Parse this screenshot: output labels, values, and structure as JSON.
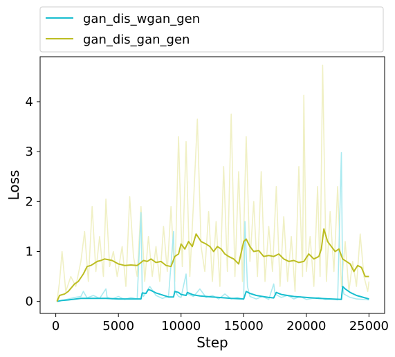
{
  "chart_data": {
    "type": "line",
    "xlabel": "Step",
    "ylabel": "Loss",
    "xlim": [
      -1250,
      26250
    ],
    "ylim": [
      -0.24,
      4.9
    ],
    "xticks": [
      0,
      5000,
      10000,
      15000,
      20000,
      25000
    ],
    "yticks": [
      0,
      1,
      2,
      3,
      4
    ],
    "grid": false,
    "legend_position": "top (above plot)",
    "series": [
      {
        "name": "gan_dis_wgan_gen",
        "color": "#17becf",
        "raw_color": "#aaeaf0",
        "raw_x": [
          100,
          500,
          1000,
          1500,
          2000,
          2200,
          2500,
          3000,
          3500,
          4000,
          4100,
          4500,
          5000,
          5500,
          6000,
          6500,
          6800,
          6900,
          7000,
          7500,
          8000,
          8500,
          9000,
          9400,
          9500,
          9800,
          10000,
          10400,
          10500,
          11000,
          11500,
          12000,
          12500,
          13000,
          13500,
          14000,
          14500,
          15000,
          15100,
          15300,
          15500,
          16000,
          16500,
          17000,
          17400,
          17500,
          18000,
          18500,
          19000,
          19500,
          20000,
          20500,
          21000,
          21500,
          22000,
          22500,
          22800,
          22900,
          23000,
          23500,
          24000,
          24500,
          25000
        ],
        "raw_y": [
          0.0,
          0.02,
          0.05,
          0.08,
          0.1,
          0.2,
          0.07,
          0.12,
          0.06,
          0.25,
          0.08,
          0.05,
          0.1,
          0.04,
          0.08,
          0.05,
          1.78,
          0.2,
          0.1,
          0.3,
          0.12,
          0.06,
          0.1,
          1.4,
          0.2,
          0.1,
          0.08,
          0.55,
          0.15,
          0.1,
          0.25,
          0.08,
          0.12,
          0.05,
          0.15,
          0.05,
          0.08,
          0.04,
          1.6,
          0.3,
          0.1,
          0.05,
          0.1,
          0.04,
          0.35,
          0.15,
          0.08,
          0.12,
          0.05,
          0.1,
          0.04,
          0.06,
          0.08,
          0.04,
          0.05,
          0.03,
          2.98,
          0.3,
          0.15,
          0.08,
          0.05,
          0.04,
          0.03
        ],
        "smooth_x": [
          100,
          500,
          1000,
          2000,
          3000,
          4000,
          5000,
          6000,
          6800,
          6900,
          7200,
          7400,
          7600,
          8000,
          8500,
          9000,
          9400,
          9500,
          9800,
          10000,
          10400,
          10500,
          10800,
          11000,
          11500,
          12000,
          12500,
          13000,
          14000,
          15000,
          15200,
          15500,
          16000,
          16500,
          17000,
          17400,
          17600,
          18000,
          19000,
          20000,
          21000,
          22000,
          22800,
          22900,
          23100,
          23500,
          24000,
          25000
        ],
        "smooth_y": [
          0.0,
          0.02,
          0.03,
          0.06,
          0.06,
          0.06,
          0.05,
          0.05,
          0.05,
          0.17,
          0.16,
          0.24,
          0.22,
          0.17,
          0.13,
          0.09,
          0.09,
          0.2,
          0.18,
          0.14,
          0.12,
          0.18,
          0.15,
          0.13,
          0.11,
          0.1,
          0.09,
          0.08,
          0.06,
          0.05,
          0.2,
          0.16,
          0.12,
          0.1,
          0.08,
          0.07,
          0.18,
          0.14,
          0.1,
          0.08,
          0.06,
          0.05,
          0.04,
          0.3,
          0.25,
          0.18,
          0.12,
          0.05
        ]
      },
      {
        "name": "gan_dis_gan_gen",
        "color": "#bcbd22",
        "raw_color": "#f0f0c4",
        "raw_x": [
          100,
          300,
          500,
          800,
          1200,
          1600,
          2000,
          2300,
          2600,
          2900,
          3200,
          3500,
          3800,
          4000,
          4300,
          4600,
          4900,
          5300,
          5600,
          5900,
          6200,
          6500,
          6800,
          7100,
          7400,
          7700,
          8000,
          8300,
          8600,
          8900,
          9200,
          9500,
          9800,
          10100,
          10400,
          10700,
          11000,
          11300,
          11600,
          11900,
          12200,
          12500,
          12800,
          13100,
          13400,
          13700,
          14000,
          14300,
          14600,
          14900,
          15200,
          15500,
          15800,
          16100,
          16400,
          16700,
          17000,
          17300,
          17600,
          17900,
          18200,
          18500,
          18800,
          19100,
          19400,
          19700,
          19800,
          20000,
          20300,
          20600,
          20900,
          21100,
          21300,
          21600,
          21900,
          22200,
          22500,
          22800,
          23100,
          23400,
          23700,
          24000,
          24300,
          24600,
          24900,
          25000
        ],
        "raw_y": [
          0.0,
          0.4,
          1.0,
          0.2,
          0.5,
          0.3,
          0.8,
          1.4,
          0.4,
          1.9,
          0.6,
          1.3,
          0.5,
          2.05,
          0.7,
          1.0,
          0.5,
          1.1,
          0.3,
          2.1,
          0.9,
          0.5,
          1.9,
          0.4,
          1.3,
          0.5,
          1.1,
          0.4,
          1.5,
          0.6,
          1.9,
          0.4,
          3.3,
          0.7,
          3.2,
          0.5,
          2.0,
          3.65,
          1.1,
          0.6,
          1.8,
          0.4,
          1.6,
          0.3,
          2.7,
          0.6,
          3.75,
          0.5,
          2.6,
          0.4,
          3.3,
          0.8,
          2.0,
          0.5,
          2.6,
          0.4,
          1.5,
          0.6,
          2.3,
          0.3,
          1.7,
          0.4,
          1.3,
          0.2,
          2.7,
          0.5,
          4.13,
          0.6,
          1.3,
          0.3,
          2.3,
          0.5,
          4.73,
          0.4,
          1.8,
          0.6,
          2.3,
          0.3,
          1.2,
          0.2,
          0.8,
          0.3,
          1.35,
          0.5,
          0.2,
          0.4
        ],
        "smooth_x": [
          100,
          300,
          700,
          1000,
          1500,
          1800,
          2200,
          2500,
          2800,
          3000,
          3300,
          3600,
          3900,
          4100,
          4500,
          5000,
          5500,
          6000,
          6500,
          6800,
          7000,
          7300,
          7600,
          8000,
          8400,
          8800,
          9200,
          9500,
          9800,
          10000,
          10300,
          10600,
          10900,
          11200,
          11600,
          12000,
          12300,
          12600,
          12900,
          13200,
          13500,
          13800,
          14200,
          14600,
          15000,
          15200,
          15500,
          15800,
          16200,
          16600,
          17000,
          17400,
          17800,
          18200,
          18600,
          19000,
          19400,
          19800,
          20200,
          20600,
          21000,
          21200,
          21400,
          21700,
          22000,
          22300,
          22600,
          22900,
          23200,
          23500,
          23800,
          24100,
          24400,
          24700,
          25000
        ],
        "smooth_y": [
          0.0,
          0.12,
          0.15,
          0.2,
          0.35,
          0.4,
          0.55,
          0.7,
          0.72,
          0.75,
          0.8,
          0.82,
          0.85,
          0.84,
          0.82,
          0.75,
          0.72,
          0.73,
          0.72,
          0.78,
          0.82,
          0.8,
          0.85,
          0.78,
          0.8,
          0.72,
          0.7,
          0.9,
          0.95,
          1.15,
          1.05,
          1.2,
          1.1,
          1.35,
          1.2,
          1.15,
          1.1,
          1.0,
          1.1,
          1.05,
          0.95,
          0.9,
          0.85,
          0.75,
          1.2,
          1.25,
          1.1,
          1.0,
          1.02,
          0.9,
          0.92,
          0.9,
          0.95,
          0.85,
          0.8,
          0.82,
          0.78,
          0.8,
          0.95,
          0.85,
          0.9,
          1.05,
          1.45,
          1.2,
          1.1,
          1.0,
          1.05,
          0.85,
          0.8,
          0.75,
          0.6,
          0.72,
          0.68,
          0.5,
          0.5
        ]
      }
    ]
  }
}
